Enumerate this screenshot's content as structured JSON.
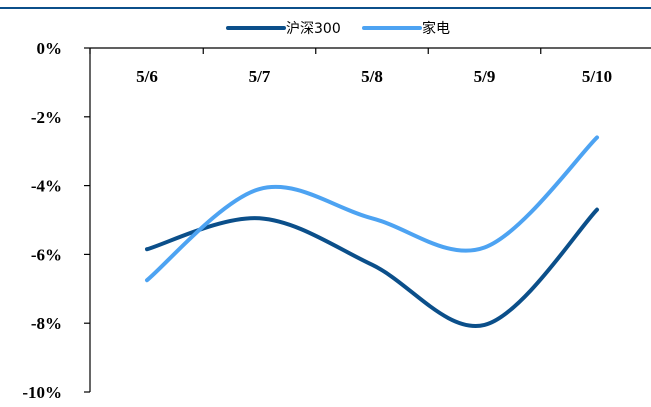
{
  "chart_data": {
    "type": "line",
    "categories": [
      "5/6",
      "5/7",
      "5/8",
      "5/9",
      "5/10"
    ],
    "ylim": [
      -10,
      0
    ],
    "y_ticks": [
      0,
      -2,
      -4,
      -6,
      -8,
      -10
    ],
    "y_tick_labels": [
      "0%",
      "-2%",
      "-4%",
      "-6%",
      "-8%",
      "-10%"
    ],
    "x_axis_position": "top",
    "grid": false,
    "legend_position": "top-center",
    "series": [
      {
        "name": "沪深300",
        "color": "#0b4f8a",
        "values": [
          -5.85,
          -4.95,
          -6.3,
          -8.05,
          -4.7
        ]
      },
      {
        "name": "家电",
        "color": "#4da3f2",
        "values": [
          -6.75,
          -4.1,
          -4.95,
          -5.8,
          -2.6
        ]
      }
    ]
  },
  "colors": {
    "header_rule": "#0b4f8a",
    "axis": "#000000"
  }
}
